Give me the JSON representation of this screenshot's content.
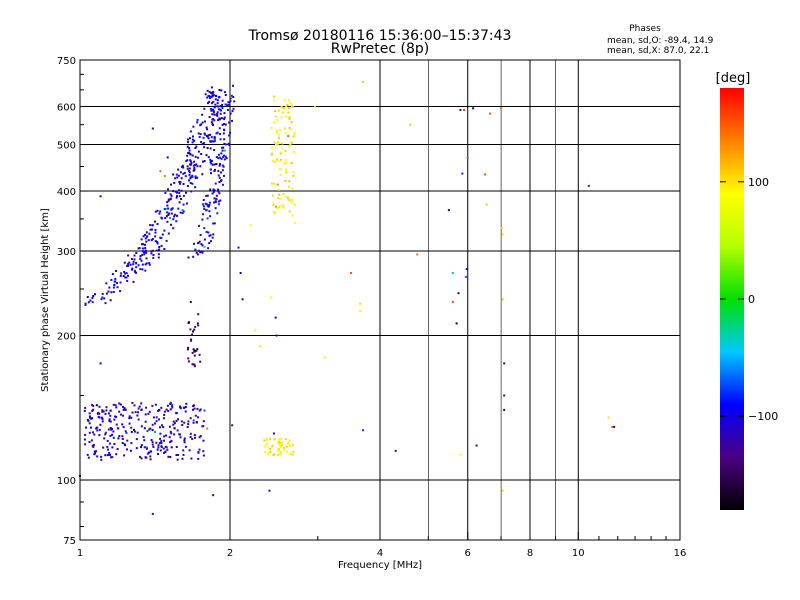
{
  "chart_data": {
    "type": "scatter",
    "title": "Tromsø 20180116 15:36:00–15:37:43",
    "subtitle": "RwPretec (8p)",
    "stats": {
      "heading": "Phases",
      "line1": "mean, sd,O: -89.4, 14.9",
      "line2": "mean, sd,X:  87.0, 22.1"
    },
    "xlabel": "Frequency [MHz]",
    "ylabel": "Stationary phase Virtual Height [km]",
    "x_scale": "log",
    "y_scale": "log",
    "xlim": [
      1,
      16
    ],
    "ylim": [
      75,
      750
    ],
    "x_ticks": [
      1,
      2,
      4,
      6,
      8,
      10,
      16
    ],
    "x_tick_labels": [
      "1",
      "2",
      "4",
      "6",
      "8",
      "10",
      "16"
    ],
    "y_ticks": [
      75,
      100,
      200,
      300,
      400,
      500,
      600,
      750
    ],
    "y_tick_labels": [
      "75",
      "100",
      "200",
      "300",
      "400",
      "500",
      "600",
      "750"
    ],
    "grid": true,
    "colorbar": {
      "label": "[deg]",
      "range": [
        -180,
        180
      ],
      "ticks": [
        100,
        0,
        -100
      ],
      "tick_labels": [
        "100",
        "0",
        "−100"
      ]
    },
    "clusters": [
      {
        "name": "F-trace O",
        "x_from": 1.02,
        "x_to": 1.92,
        "y_from": 235,
        "y_to": 650,
        "phase": -105,
        "n": 380,
        "kind": "curveO"
      },
      {
        "name": "F-trace X",
        "x_from": 1.7,
        "x_to": 1.98,
        "y_from": 290,
        "y_to": 650,
        "phase": -100,
        "n": 160,
        "kind": "curveX"
      },
      {
        "name": "E layer",
        "x_from": 1.02,
        "x_to": 1.78,
        "y_from": 110,
        "y_to": 145,
        "phase": -110,
        "n": 320,
        "kind": "band"
      },
      {
        "name": "yellow F",
        "x_from": 2.42,
        "x_to": 2.7,
        "y_from": 340,
        "y_to": 630,
        "phase": 95,
        "n": 110,
        "kind": "blob"
      },
      {
        "name": "yellow E",
        "x_from": 2.33,
        "x_to": 2.68,
        "y_from": 112,
        "y_to": 122,
        "phase": 90,
        "n": 55,
        "kind": "blob"
      },
      {
        "name": "purple",
        "x_from": 1.63,
        "x_to": 1.75,
        "y_from": 170,
        "y_to": 235,
        "phase": -150,
        "n": 30,
        "kind": "blob"
      }
    ],
    "points": [
      [
        1.0,
        102,
        -110
      ],
      [
        1.4,
        85,
        -110
      ],
      [
        1.85,
        93,
        -115
      ],
      [
        2.4,
        95,
        -120
      ],
      [
        1.8,
        128,
        140
      ],
      [
        2.02,
        130,
        -125
      ],
      [
        2.45,
        125,
        -112
      ],
      [
        3.7,
        127,
        -80
      ],
      [
        4.3,
        115,
        -130
      ],
      [
        5.8,
        113,
        90
      ],
      [
        6.25,
        118,
        -130
      ],
      [
        7.05,
        95,
        100
      ],
      [
        7.1,
        175,
        -120
      ],
      [
        7.1,
        150,
        -115
      ],
      [
        7.1,
        140,
        -150
      ],
      [
        11.5,
        135,
        100
      ],
      [
        11.7,
        129,
        150
      ],
      [
        11.8,
        129,
        -100
      ],
      [
        1.1,
        175,
        -105
      ],
      [
        1.1,
        390,
        -100
      ],
      [
        1.4,
        540,
        -110
      ],
      [
        1.5,
        470,
        -105
      ],
      [
        1.45,
        440,
        150
      ],
      [
        1.48,
        430,
        140
      ],
      [
        2.08,
        305,
        -120
      ],
      [
        2.1,
        270,
        -100
      ],
      [
        2.12,
        238,
        -150
      ],
      [
        2.25,
        205,
        95
      ],
      [
        2.3,
        190,
        100
      ],
      [
        2.42,
        240,
        80
      ],
      [
        2.47,
        218,
        -110
      ],
      [
        2.48,
        200,
        -130
      ],
      [
        2.2,
        340,
        90
      ],
      [
        2.48,
        535,
        80
      ],
      [
        2.67,
        600,
        110
      ],
      [
        2.96,
        600,
        75
      ],
      [
        3.1,
        180,
        95
      ],
      [
        3.5,
        270,
        150
      ],
      [
        3.65,
        233,
        100
      ],
      [
        3.65,
        225,
        95
      ],
      [
        3.7,
        675,
        110
      ],
      [
        4.6,
        550,
        110
      ],
      [
        4.75,
        295,
        140
      ],
      [
        5.6,
        270,
        -30
      ],
      [
        5.5,
        365,
        -150
      ],
      [
        5.6,
        235,
        160
      ],
      [
        5.7,
        212,
        -165
      ],
      [
        5.75,
        245,
        -145
      ],
      [
        5.8,
        590,
        -140
      ],
      [
        5.85,
        435,
        -80
      ],
      [
        5.9,
        590,
        160
      ],
      [
        5.95,
        265,
        -70
      ],
      [
        5.97,
        275,
        -100
      ],
      [
        6.0,
        470,
        -60
      ],
      [
        6.15,
        595,
        -150
      ],
      [
        6.5,
        433,
        150
      ],
      [
        6.55,
        375,
        110
      ],
      [
        6.65,
        580,
        150
      ],
      [
        7.0,
        595,
        140
      ],
      [
        7.02,
        335,
        110
      ],
      [
        7.05,
        325,
        100
      ],
      [
        7.05,
        238,
        110
      ],
      [
        10.5,
        410,
        -80
      ]
    ]
  }
}
